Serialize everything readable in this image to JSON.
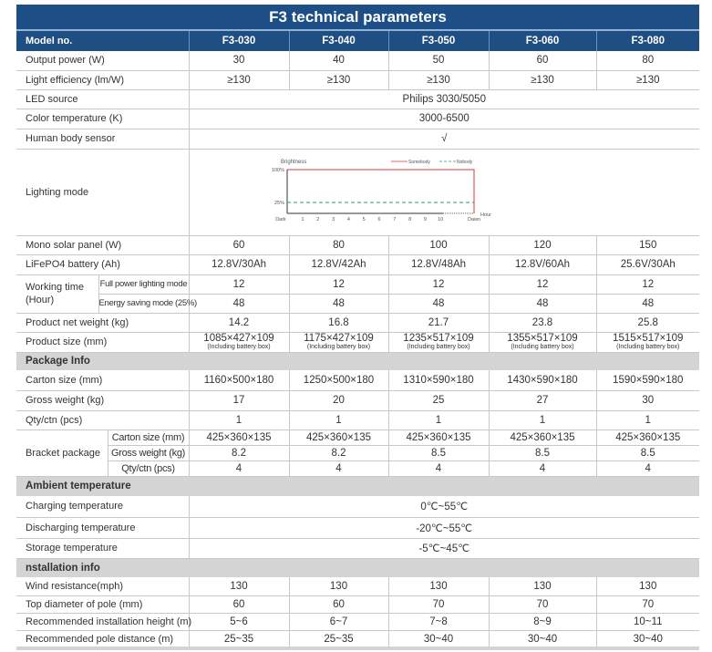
{
  "title": "F3 technical parameters",
  "header": {
    "label": "Model no.",
    "models": [
      "F3-030",
      "F3-040",
      "F3-050",
      "F3-060",
      "F3-080"
    ]
  },
  "rows": [
    {
      "kind": "vals",
      "label": "Output power (W)",
      "values": [
        "30",
        "40",
        "50",
        "60",
        "80"
      ]
    },
    {
      "kind": "vals",
      "label": "Light efficiency (lm/W)",
      "values": [
        "≥130",
        "≥130",
        "≥130",
        "≥130",
        "≥130"
      ]
    },
    {
      "kind": "span",
      "label": "LED source",
      "value": "Philips 3030/5050"
    },
    {
      "kind": "span",
      "label": "Color temperature (K)",
      "value": "3000-6500"
    },
    {
      "kind": "span",
      "label": "Human body sensor",
      "value": "√"
    },
    {
      "kind": "chart",
      "label": "Lighting mode"
    },
    {
      "kind": "vals",
      "label": "Mono solar panel (W)",
      "values": [
        "60",
        "80",
        "100",
        "120",
        "150"
      ]
    },
    {
      "kind": "vals",
      "label": "LiFePO4 battery (Ah)",
      "values": [
        "12.8V/30Ah",
        "12.8V/42Ah",
        "12.8V/48Ah",
        "12.8V/60Ah",
        "25.6V/30Ah"
      ]
    },
    {
      "kind": "group",
      "label": "Working time (Hour)",
      "sub": [
        {
          "label": "Full power lighting mode",
          "values": [
            "12",
            "12",
            "12",
            "12",
            "12"
          ]
        },
        {
          "label": "Energy saving mode (25%)",
          "values": [
            "48",
            "48",
            "48",
            "48",
            "48"
          ]
        }
      ]
    },
    {
      "kind": "vals",
      "label": "Product net weight (kg)",
      "values": [
        "14.2",
        "16.8",
        "21.7",
        "23.8",
        "25.8"
      ]
    },
    {
      "kind": "size",
      "label": "Product size (mm)",
      "values": [
        "1085×427×109",
        "1175×427×109",
        "1235×517×109",
        "1355×517×109",
        "1515×517×109"
      ],
      "note": "(Including battery box)"
    },
    {
      "kind": "section",
      "label": "Package Info"
    },
    {
      "kind": "vals",
      "label": "Carton size (mm)",
      "values": [
        "1160×500×180",
        "1250×500×180",
        "1310×590×180",
        "1430×590×180",
        "1590×590×180"
      ]
    },
    {
      "kind": "vals",
      "label": "Gross weight (kg)",
      "values": [
        "17",
        "20",
        "25",
        "27",
        "30"
      ]
    },
    {
      "kind": "vals",
      "label": "Qty/ctn (pcs)",
      "values": [
        "1",
        "1",
        "1",
        "1",
        "1"
      ]
    },
    {
      "kind": "bracket",
      "label": "Bracket package",
      "sub": [
        {
          "label": "Carton size (mm)",
          "values": [
            "425×360×135",
            "425×360×135",
            "425×360×135",
            "425×360×135",
            "425×360×135"
          ]
        },
        {
          "label": "Gross weight (kg)",
          "values": [
            "8.2",
            "8.2",
            "8.5",
            "8.5",
            "8.5"
          ]
        },
        {
          "label": "Qty/ctn (pcs)",
          "values": [
            "4",
            "4",
            "4",
            "4",
            "4"
          ]
        }
      ]
    },
    {
      "kind": "section",
      "label": "Ambient temperature"
    },
    {
      "kind": "span",
      "label": "Charging temperature",
      "value": "0℃~55℃"
    },
    {
      "kind": "span",
      "label": "Discharging temperature",
      "value": "-20℃~55℃"
    },
    {
      "kind": "span",
      "label": "Storage temperature",
      "value": "-5℃~45℃"
    },
    {
      "kind": "section",
      "label": "nstallation info"
    },
    {
      "kind": "vals",
      "label": "Wind resistance(mph)",
      "values": [
        "130",
        "130",
        "130",
        "130",
        "130"
      ]
    },
    {
      "kind": "vals",
      "label": "Top diameter of pole (mm)",
      "values": [
        "60",
        "60",
        "70",
        "70",
        "70"
      ]
    },
    {
      "kind": "vals",
      "label": "Recommended installation height (m)",
      "values": [
        "5~6",
        "6~7",
        "7~8",
        "8~9",
        "10~11"
      ]
    },
    {
      "kind": "vals",
      "label": "Recommended pole distance (m)",
      "values": [
        "25~35",
        "25~35",
        "30~40",
        "30~40",
        "30~40"
      ]
    }
  ],
  "lighting_chart": {
    "ylabel": "Brightness",
    "xlabel": "Hour",
    "yticks": [
      "100%",
      "25%"
    ],
    "xticks": [
      "Dark",
      "1",
      "2",
      "3",
      "4",
      "5",
      "6",
      "7",
      "8",
      "9",
      "10",
      "Dawn"
    ],
    "series": [
      {
        "name": "Somebody",
        "level": 100,
        "color": "#d93a3a",
        "style": "solid"
      },
      {
        "name": "Nobody",
        "level": 25,
        "color": "#2a9a6a",
        "style": "dashed"
      }
    ]
  },
  "colors": {
    "header": "#1f4e82",
    "title_bar": "#1d4f86",
    "section": "#d4d4d4"
  }
}
